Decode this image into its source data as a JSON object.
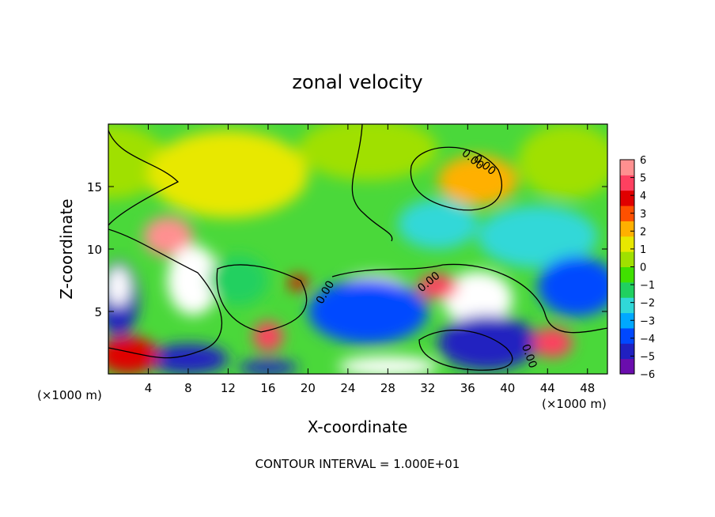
{
  "chart_data": {
    "type": "heatmap",
    "title": "zonal velocity",
    "xlabel": "X-coordinate",
    "ylabel": "Z-coordinate",
    "x_unit": "(×1000 m)",
    "y_unit": "(×1000 m)",
    "x_ticks": [
      "4",
      "8",
      "12",
      "16",
      "20",
      "24",
      "28",
      "32",
      "36",
      "40",
      "44",
      "48"
    ],
    "y_ticks": [
      "5",
      "10",
      "15"
    ],
    "xlim": [
      0,
      50
    ],
    "ylim": [
      0,
      20
    ],
    "note": "CONTOUR INTERVAL = 1.000E+01",
    "contour_labels": [
      "0.00",
      "0.00",
      "0.00",
      "0.00",
      "0.00"
    ],
    "colorbar": {
      "labels": [
        "6",
        "5",
        "4",
        "3",
        "2",
        "1",
        "0",
        "−1",
        "−2",
        "−3",
        "−4",
        "−5",
        "−6"
      ],
      "range": [
        -6,
        6
      ],
      "colors": [
        "#6a0dad",
        "#2020c0",
        "#0048ff",
        "#00a8ff",
        "#30d8d8",
        "#20d060",
        "#40e000",
        "#a0e000",
        "#e8e800",
        "#ffb000",
        "#ff5000",
        "#e00000",
        "#ff4060",
        "#ff9090"
      ]
    },
    "regions": [
      {
        "x": 0,
        "y": 17,
        "rx": 6,
        "ry": 3,
        "v": 0.2
      },
      {
        "x": 12,
        "y": 16,
        "rx": 8,
        "ry": 3.5,
        "v": 1.6
      },
      {
        "x": 26,
        "y": 18,
        "rx": 7,
        "ry": 2.5,
        "v": 0.4
      },
      {
        "x": 37,
        "y": 15.5,
        "rx": 4,
        "ry": 2,
        "v": 1.8
      },
      {
        "x": 46,
        "y": 17,
        "rx": 5,
        "ry": 3,
        "v": 0.1
      },
      {
        "x": 43,
        "y": 11,
        "rx": 6,
        "ry": 2.5,
        "v": -2.2
      },
      {
        "x": 33,
        "y": 12,
        "rx": 4,
        "ry": 2,
        "v": -1.8
      },
      {
        "x": 6,
        "y": 11,
        "rx": 2.5,
        "ry": 1.6,
        "v": 5.2
      },
      {
        "x": 8.5,
        "y": 7.5,
        "rx": 2.6,
        "ry": 2.8,
        "v": 9
      },
      {
        "x": 1,
        "y": 6,
        "rx": 2,
        "ry": 3,
        "v": -4.5
      },
      {
        "x": 1,
        "y": 7,
        "rx": 1.2,
        "ry": 1.6,
        "v": -9
      },
      {
        "x": 13,
        "y": 7.5,
        "rx": 3,
        "ry": 2,
        "v": -1.5
      },
      {
        "x": 19,
        "y": 7.3,
        "rx": 1,
        "ry": 0.6,
        "v": 4.2
      },
      {
        "x": 16,
        "y": 3,
        "rx": 1.5,
        "ry": 1.2,
        "v": 5
      },
      {
        "x": 26.5,
        "y": 6.2,
        "rx": 4,
        "ry": 1.8,
        "v": -9
      },
      {
        "x": 26,
        "y": 5,
        "rx": 6,
        "ry": 2.6,
        "v": -3.5
      },
      {
        "x": 37,
        "y": 6,
        "rx": 3.5,
        "ry": 2.2,
        "v": 9
      },
      {
        "x": 33,
        "y": 7,
        "rx": 2,
        "ry": 1,
        "v": 5
      },
      {
        "x": 39,
        "y": 2,
        "rx": 2.5,
        "ry": 1.2,
        "v": -9
      },
      {
        "x": 38,
        "y": 2.5,
        "rx": 5,
        "ry": 2.2,
        "v": -4.5
      },
      {
        "x": 47.5,
        "y": 7.5,
        "rx": 2.5,
        "ry": 1.6,
        "v": -9
      },
      {
        "x": 47,
        "y": 7,
        "rx": 4,
        "ry": 2.4,
        "v": -4
      },
      {
        "x": 44.5,
        "y": 2.5,
        "rx": 2,
        "ry": 1.2,
        "v": 4.5
      },
      {
        "x": 8,
        "y": 1.2,
        "rx": 4,
        "ry": 1.2,
        "v": -5
      },
      {
        "x": 2,
        "y": 1.5,
        "rx": 3,
        "ry": 1.5,
        "v": 4
      },
      {
        "x": 28,
        "y": 0.6,
        "rx": 5,
        "ry": 0.8,
        "v": 9
      },
      {
        "x": 16,
        "y": 0.5,
        "rx": 3,
        "ry": 0.6,
        "v": -5
      }
    ]
  }
}
